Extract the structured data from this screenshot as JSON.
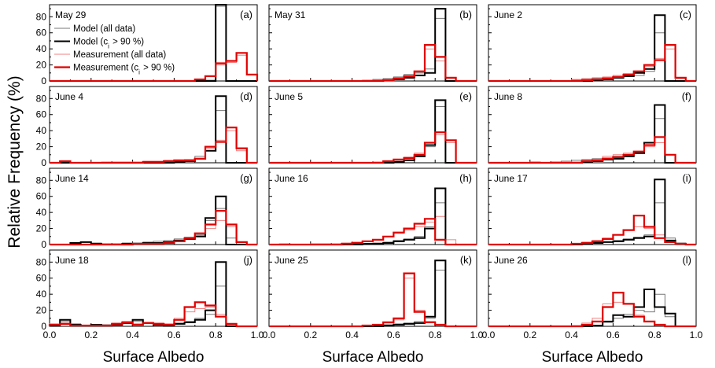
{
  "figure": {
    "ylabel": "Relative Frequency (%)",
    "xlabel": "Surface Albedo"
  },
  "colors": {
    "model_all": "#777777",
    "model_ci": "#000000",
    "meas_all": "#f08080",
    "meas_ci": "#e00000",
    "axis": "#000000"
  },
  "chart_data": {
    "type": "step-histogram",
    "x_axis": {
      "range": [
        0.0,
        1.0
      ],
      "ticks": [
        0.0,
        0.2,
        0.4,
        0.6,
        0.8,
        1.0
      ],
      "tick_labels": [
        "0.0",
        "0.2",
        "0.4",
        "0.6",
        "0.8",
        "1.0"
      ],
      "label": "Surface Albedo"
    },
    "y_axis": {
      "range": [
        0,
        95
      ],
      "ticks": [
        0,
        20,
        40,
        60,
        80
      ],
      "label": "Relative Frequency (%)"
    },
    "bin_edges": [
      0.0,
      0.05,
      0.1,
      0.15,
      0.2,
      0.25,
      0.3,
      0.35,
      0.4,
      0.45,
      0.5,
      0.55,
      0.6,
      0.65,
      0.7,
      0.75,
      0.8,
      0.85,
      0.9,
      0.95,
      1.0
    ],
    "legend": {
      "entries": [
        {
          "label_html": "Model (all data)",
          "series": "model_all"
        },
        {
          "label_html": "Model (c<sub>i</sub> &gt; 90 %)",
          "series": "model_ci"
        },
        {
          "label_html": "Measurement (all data)",
          "series": "meas_all"
        },
        {
          "label_html": "Measurement (c<sub>i</sub> &gt; 90 %)",
          "series": "meas_ci"
        }
      ],
      "placement": "upper-left of panel (a)"
    },
    "panels": [
      {
        "date": "May 29",
        "letter": "(a)",
        "series": {
          "model_all": [
            0,
            0,
            0,
            0,
            0,
            0,
            0,
            0,
            0,
            0,
            0,
            0,
            0,
            0,
            1,
            1,
            93,
            0,
            0,
            0
          ],
          "model_ci": [
            0,
            0,
            0,
            0,
            0,
            0,
            0,
            0,
            0,
            0,
            0,
            0,
            0,
            0,
            0,
            0,
            97,
            0,
            0,
            0
          ],
          "meas_all": [
            0,
            0,
            0,
            0,
            0,
            0,
            0,
            0,
            0,
            0,
            0,
            0,
            0,
            0,
            2,
            6,
            20,
            23,
            32,
            8
          ],
          "meas_ci": [
            0,
            0,
            0,
            0,
            0,
            0,
            0,
            0,
            0,
            0,
            0,
            0,
            0,
            0,
            2,
            6,
            22,
            25,
            35,
            8
          ]
        }
      },
      {
        "date": "May 31",
        "letter": "(b)",
        "series": {
          "model_all": [
            0,
            0,
            0,
            0,
            0,
            0,
            0,
            0,
            0,
            1,
            2,
            3,
            5,
            8,
            10,
            15,
            78,
            0,
            0,
            0
          ],
          "model_ci": [
            0,
            0,
            0,
            0,
            0,
            0,
            0,
            0,
            0,
            0,
            0,
            1,
            2,
            4,
            7,
            10,
            90,
            0,
            0,
            0
          ],
          "meas_all": [
            0,
            0,
            0,
            0,
            0,
            0,
            0,
            0,
            0,
            1,
            1,
            2,
            4,
            6,
            10,
            40,
            25,
            4,
            0,
            0
          ],
          "meas_ci": [
            0,
            0,
            0,
            0,
            0,
            0,
            0,
            0,
            0,
            0,
            0,
            1,
            3,
            6,
            12,
            45,
            30,
            4,
            0,
            0
          ]
        }
      },
      {
        "date": "June 2",
        "letter": "(c)",
        "series": {
          "model_all": [
            0,
            0,
            0,
            0,
            0,
            0,
            0,
            0,
            1,
            2,
            3,
            4,
            5,
            6,
            7,
            12,
            60,
            0,
            0,
            0
          ],
          "model_ci": [
            0,
            0,
            0,
            0,
            0,
            0,
            0,
            0,
            0,
            0,
            1,
            2,
            4,
            6,
            10,
            15,
            82,
            0,
            0,
            0
          ],
          "meas_all": [
            0,
            0,
            0,
            0,
            0,
            0,
            0,
            0,
            2,
            3,
            4,
            5,
            7,
            9,
            12,
            18,
            28,
            40,
            3,
            0
          ],
          "meas_ci": [
            0,
            0,
            0,
            0,
            0,
            0,
            0,
            0,
            0,
            1,
            2,
            3,
            5,
            8,
            12,
            20,
            26,
            45,
            4,
            0
          ]
        }
      },
      {
        "date": "June 4",
        "letter": "(d)",
        "series": {
          "model_all": [
            0,
            0,
            0,
            0,
            0,
            0,
            0,
            0,
            0,
            0,
            1,
            1,
            2,
            3,
            8,
            15,
            65,
            0,
            0,
            0
          ],
          "model_ci": [
            0,
            0,
            0,
            0,
            0,
            0,
            0,
            0,
            0,
            0,
            0,
            0,
            1,
            2,
            5,
            15,
            83,
            0,
            0,
            0
          ],
          "meas_all": [
            0,
            2,
            0,
            0,
            0,
            1,
            1,
            1,
            1,
            2,
            2,
            3,
            3,
            4,
            5,
            18,
            28,
            40,
            15,
            0
          ],
          "meas_ci": [
            0,
            2,
            0,
            0,
            0,
            0,
            0,
            0,
            0,
            1,
            1,
            2,
            3,
            3,
            5,
            20,
            26,
            44,
            18,
            0
          ]
        }
      },
      {
        "date": "June 5",
        "letter": "(e)",
        "series": {
          "model_all": [
            0,
            0,
            0,
            0,
            0,
            0,
            0,
            0,
            0,
            0,
            0,
            1,
            2,
            4,
            8,
            20,
            70,
            0,
            0,
            0
          ],
          "model_ci": [
            0,
            0,
            0,
            0,
            0,
            0,
            0,
            0,
            0,
            0,
            0,
            0,
            1,
            3,
            8,
            22,
            78,
            0,
            0,
            0
          ],
          "meas_all": [
            0,
            0,
            0,
            0,
            0,
            0,
            0,
            0,
            0,
            0,
            1,
            2,
            4,
            7,
            12,
            25,
            35,
            25,
            0,
            0
          ],
          "meas_ci": [
            0,
            0,
            0,
            0,
            0,
            0,
            0,
            0,
            0,
            0,
            0,
            2,
            4,
            6,
            10,
            25,
            38,
            28,
            0,
            0
          ]
        }
      },
      {
        "date": "June 8",
        "letter": "(f)",
        "series": {
          "model_all": [
            0,
            0,
            0,
            0,
            1,
            0,
            1,
            2,
            3,
            4,
            5,
            6,
            8,
            10,
            14,
            22,
            55,
            0,
            0,
            0
          ],
          "model_ci": [
            0,
            0,
            0,
            0,
            0,
            0,
            0,
            0,
            0,
            1,
            2,
            4,
            5,
            8,
            12,
            25,
            72,
            0,
            0,
            0
          ],
          "meas_all": [
            0,
            0,
            0,
            0,
            0,
            0,
            0,
            0,
            1,
            3,
            5,
            8,
            10,
            12,
            14,
            20,
            25,
            10,
            0,
            0
          ],
          "meas_ci": [
            0,
            0,
            0,
            0,
            0,
            0,
            0,
            0,
            0,
            2,
            3,
            5,
            7,
            10,
            14,
            22,
            32,
            10,
            0,
            0
          ]
        }
      },
      {
        "date": "June 14",
        "letter": "(g)",
        "series": {
          "model_all": [
            0,
            0,
            2,
            3,
            2,
            1,
            1,
            2,
            2,
            3,
            4,
            5,
            7,
            9,
            12,
            30,
            45,
            8,
            0,
            0
          ],
          "model_ci": [
            0,
            0,
            2,
            3,
            1,
            0,
            0,
            1,
            1,
            2,
            2,
            3,
            5,
            7,
            10,
            33,
            60,
            0,
            0,
            0
          ],
          "meas_all": [
            0,
            0,
            0,
            0,
            0,
            0,
            0,
            1,
            1,
            2,
            2,
            3,
            5,
            8,
            12,
            20,
            30,
            22,
            3,
            0
          ],
          "meas_ci": [
            0,
            0,
            0,
            0,
            0,
            0,
            0,
            0,
            1,
            1,
            1,
            2,
            4,
            8,
            14,
            25,
            42,
            25,
            3,
            0
          ]
        }
      },
      {
        "date": "June 16",
        "letter": "(h)",
        "series": {
          "model_all": [
            0,
            0,
            0,
            0,
            0,
            0,
            0,
            0,
            1,
            1,
            2,
            3,
            5,
            7,
            10,
            22,
            52,
            0,
            0,
            0
          ],
          "model_ci": [
            0,
            0,
            0,
            0,
            0,
            0,
            0,
            0,
            0,
            1,
            1,
            2,
            4,
            6,
            8,
            20,
            70,
            0,
            0,
            0
          ],
          "meas_all": [
            0,
            1,
            0,
            0,
            1,
            1,
            1,
            2,
            3,
            4,
            6,
            10,
            14,
            18,
            22,
            28,
            35,
            6,
            0,
            0
          ],
          "meas_ci": [
            0,
            0,
            0,
            0,
            0,
            0,
            0,
            1,
            2,
            4,
            6,
            10,
            15,
            20,
            26,
            32,
            6,
            0,
            0,
            0
          ]
        }
      },
      {
        "date": "June 17",
        "letter": "(i)",
        "series": {
          "model_all": [
            0,
            0,
            0,
            0,
            0,
            0,
            0,
            0,
            0,
            1,
            2,
            3,
            5,
            7,
            9,
            12,
            52,
            8,
            2,
            0
          ],
          "model_ci": [
            0,
            0,
            0,
            0,
            0,
            0,
            0,
            0,
            0,
            1,
            2,
            3,
            4,
            6,
            8,
            10,
            81,
            5,
            1,
            0
          ],
          "meas_all": [
            0,
            0,
            0,
            0,
            0,
            0,
            0,
            0,
            1,
            3,
            5,
            8,
            12,
            18,
            22,
            20,
            12,
            4,
            1,
            0
          ],
          "meas_ci": [
            0,
            0,
            0,
            0,
            0,
            0,
            0,
            0,
            1,
            2,
            4,
            7,
            12,
            18,
            36,
            22,
            8,
            3,
            1,
            0
          ]
        }
      },
      {
        "date": "June 18",
        "letter": "(j)",
        "series": {
          "model_all": [
            1,
            6,
            3,
            1,
            2,
            2,
            3,
            5,
            6,
            4,
            3,
            2,
            4,
            6,
            10,
            15,
            50,
            2,
            0,
            0
          ],
          "model_ci": [
            1,
            8,
            2,
            1,
            2,
            1,
            2,
            4,
            8,
            4,
            2,
            1,
            3,
            5,
            8,
            20,
            80,
            0,
            0,
            0
          ],
          "meas_all": [
            3,
            4,
            1,
            1,
            1,
            2,
            4,
            6,
            3,
            5,
            4,
            3,
            10,
            18,
            22,
            24,
            15,
            3,
            0,
            0
          ],
          "meas_ci": [
            2,
            3,
            1,
            1,
            1,
            1,
            3,
            5,
            2,
            4,
            3,
            2,
            8,
            24,
            30,
            26,
            12,
            3,
            0,
            0
          ]
        }
      },
      {
        "date": "June 25",
        "letter": "(k)",
        "series": {
          "model_all": [
            0,
            0,
            0,
            0,
            0,
            0,
            0,
            0,
            0,
            0,
            1,
            2,
            3,
            4,
            6,
            10,
            70,
            0,
            0,
            0
          ],
          "model_ci": [
            0,
            0,
            0,
            0,
            0,
            0,
            0,
            0,
            0,
            0,
            0,
            1,
            2,
            3,
            4,
            12,
            82,
            0,
            0,
            0
          ],
          "meas_all": [
            0,
            0,
            0,
            0,
            0,
            0,
            0,
            0,
            0,
            1,
            2,
            4,
            8,
            60,
            20,
            6,
            2,
            0,
            0,
            0
          ],
          "meas_ci": [
            0,
            0,
            0,
            0,
            0,
            0,
            0,
            0,
            0,
            1,
            2,
            5,
            10,
            66,
            18,
            5,
            2,
            0,
            0,
            0
          ]
        }
      },
      {
        "date": "June 26",
        "letter": "(l)",
        "series": {
          "model_all": [
            0,
            0,
            0,
            0,
            0,
            0,
            0,
            0,
            0,
            0,
            1,
            5,
            10,
            15,
            20,
            18,
            40,
            12,
            0,
            0
          ],
          "model_ci": [
            0,
            0,
            0,
            0,
            0,
            0,
            0,
            0,
            0,
            0,
            1,
            6,
            14,
            12,
            24,
            46,
            24,
            16,
            0,
            0
          ],
          "meas_all": [
            0,
            0,
            0,
            0,
            0,
            0,
            0,
            0,
            1,
            4,
            10,
            28,
            30,
            28,
            14,
            6,
            2,
            0,
            0,
            0
          ],
          "meas_ci": [
            0,
            0,
            0,
            0,
            0,
            0,
            0,
            0,
            0,
            2,
            6,
            24,
            42,
            28,
            12,
            6,
            2,
            0,
            0,
            0
          ]
        }
      }
    ]
  }
}
